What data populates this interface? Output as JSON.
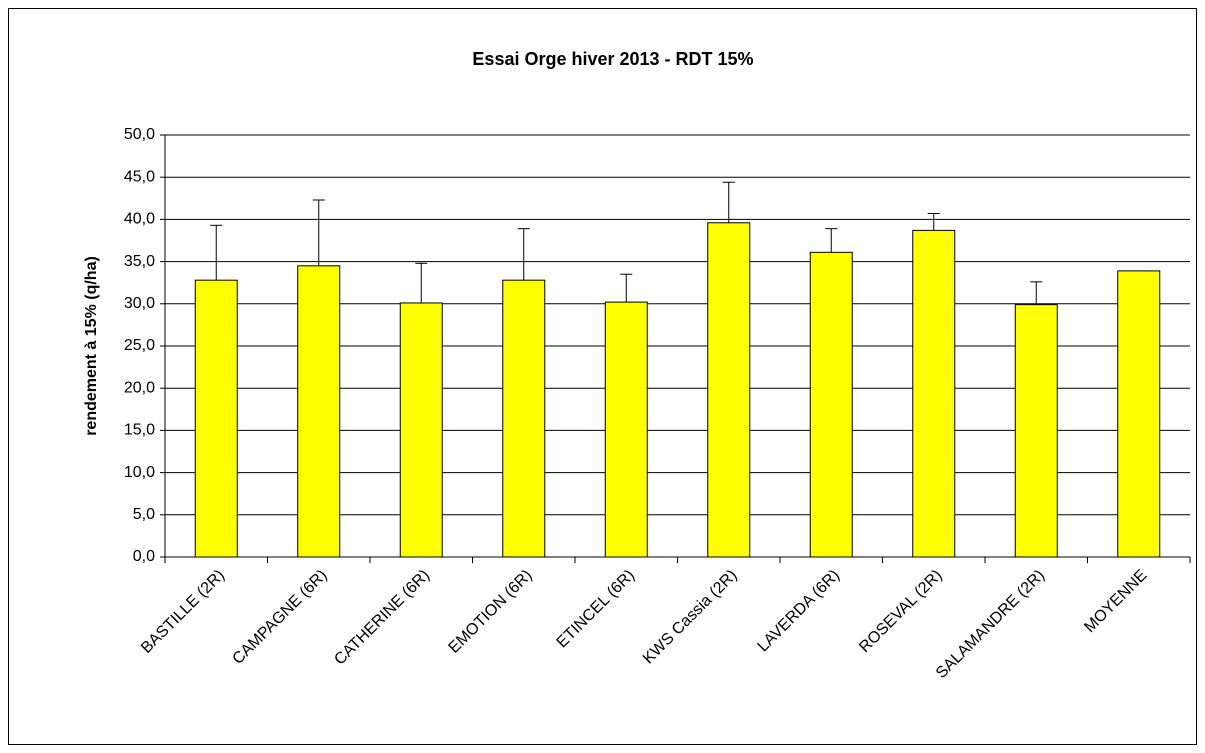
{
  "chart_data": {
    "type": "bar",
    "title": "Essai Orge hiver 2013 - RDT 15%",
    "y_label": "rendement à 15% (q/ha)",
    "categories": [
      "BASTILLE (2R)",
      "CAMPAGNE (6R)",
      "CATHERINE (6R)",
      "EMOTION (6R)",
      "ETINCEL (6R)",
      "KWS Cassia (2R)",
      "LAVERDA (6R)",
      "ROSEVAL (2R)",
      "SALAMANDRE (2R)",
      "MOYENNE"
    ],
    "values": [
      32.8,
      34.5,
      30.1,
      32.8,
      30.2,
      39.6,
      36.1,
      38.7,
      29.9,
      33.9
    ],
    "errors": [
      6.5,
      7.8,
      4.7,
      6.1,
      3.3,
      4.8,
      2.8,
      2.0,
      2.7,
      null
    ],
    "color": "#ffff00",
    "ylim": [
      0,
      50
    ],
    "yticks": [
      {
        "value": 0,
        "label": "0,0"
      },
      {
        "value": 5,
        "label": "5,0"
      },
      {
        "value": 10,
        "label": "10,0"
      },
      {
        "value": 15,
        "label": "15,0"
      },
      {
        "value": 20,
        "label": "20,0"
      },
      {
        "value": 25,
        "label": "25,0"
      },
      {
        "value": 30,
        "label": "30,0"
      },
      {
        "value": 35,
        "label": "35,0"
      },
      {
        "value": 40,
        "label": "40,0"
      },
      {
        "value": 45,
        "label": "45,0"
      },
      {
        "value": 50,
        "label": "50,0"
      }
    ],
    "grid": true
  }
}
